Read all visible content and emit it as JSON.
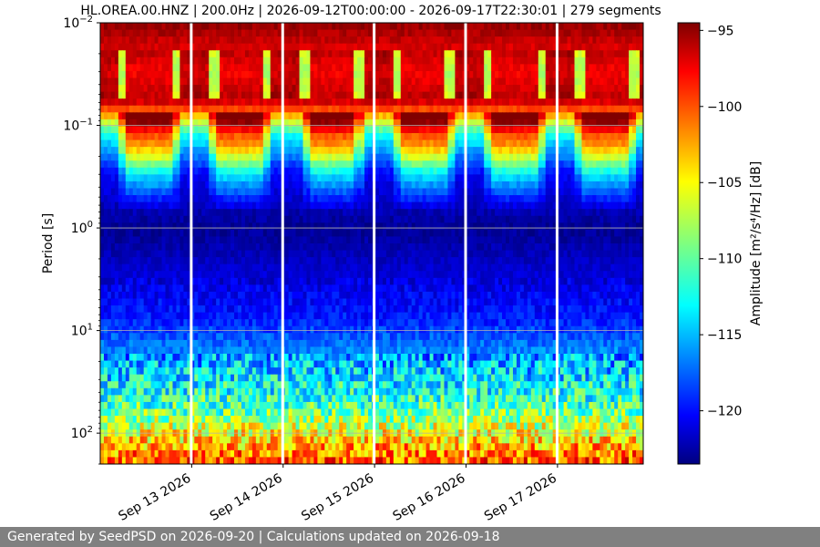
{
  "chart_data": {
    "type": "heatmap",
    "title": "HL.OREA.00.HNZ | 200.0Hz | 2026-09-12T00:00:00 - 2026-09-17T22:30:01 | 279 segments",
    "ylabel": "Period [s]",
    "y_scale": "log",
    "y_inverted": true,
    "ylim": [
      0.01,
      200
    ],
    "y_ticks": [
      {
        "value": 0.01,
        "base": "10",
        "exp": "−2"
      },
      {
        "value": 0.1,
        "base": "10",
        "exp": "−1"
      },
      {
        "value": 1,
        "base": "10",
        "exp": "0"
      },
      {
        "value": 10,
        "base": "10",
        "exp": "1"
      },
      {
        "value": 100,
        "base": "10",
        "exp": "2"
      }
    ],
    "xlim": [
      "2026-09-12T00:00:00",
      "2026-09-17T22:30:01"
    ],
    "x_tick_labels": [
      "Sep 13 2026",
      "Sep 14 2026",
      "Sep 15 2026",
      "Sep 16 2026",
      "Sep 17 2026"
    ],
    "x_tick_values": [
      1,
      2,
      3,
      4,
      5
    ],
    "x_gap_days": [
      1,
      2,
      3,
      4,
      5
    ],
    "grid": true,
    "colormap": "jet",
    "colorbar": {
      "label": "Amplitude [m²/s⁴/Hz] [dB]",
      "min": -123.5,
      "max": -94.5,
      "ticks": [
        -95,
        -100,
        -105,
        -110,
        -115,
        -120
      ],
      "tick_labels": [
        "−95",
        "−100",
        "−105",
        "−110",
        "−115",
        "−120"
      ]
    },
    "segments": 279,
    "sampling_rate_hz": 200.0,
    "period_profile": [
      {
        "period": 0.01,
        "db": -95
      },
      {
        "period": 0.03,
        "db": -99
      },
      {
        "period": 0.06,
        "db": -97
      },
      {
        "period": 0.12,
        "db": -112
      },
      {
        "period": 0.3,
        "db": -120
      },
      {
        "period": 1,
        "db": -123
      },
      {
        "period": 3,
        "db": -121
      },
      {
        "period": 8,
        "db": -119
      },
      {
        "period": 20,
        "db": -115
      },
      {
        "period": 60,
        "db": -110
      },
      {
        "period": 120,
        "db": -104
      },
      {
        "period": 200,
        "db": -100
      }
    ],
    "diurnal_variation": "daytime noise raises amplitude between periods 0.1 s and 0.6 s (about -100 to -110 dB); night-time levels fall to about -120 dB"
  },
  "footer": {
    "text": "Generated by SeedPSD on 2026-09-20 | Calculations updated on 2026-09-18"
  }
}
